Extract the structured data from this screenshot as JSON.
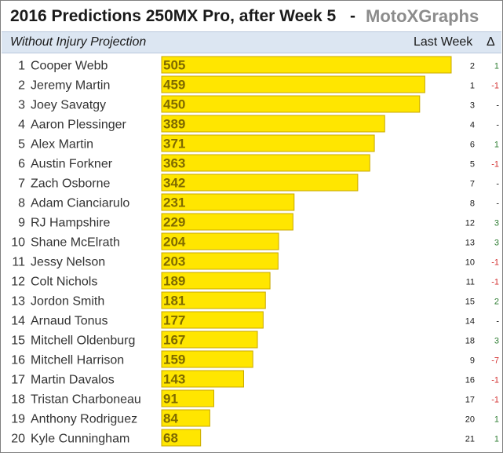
{
  "header": {
    "title": "2016 Predictions 250MX Pro, after Week 5",
    "dash": "-",
    "brand": "MotoXGraphs",
    "subtitle": "Without Injury Projection",
    "last_week_label": "Last Week",
    "delta_label": "Δ"
  },
  "colors": {
    "bar_fill": "#ffe600",
    "bar_stroke": "#c8a800",
    "value_text": "#7f6a00",
    "delta_up": "#2e7d32",
    "delta_down": "#d32f2f",
    "delta_same": "#1a1a1a"
  },
  "chart_data": {
    "type": "bar",
    "orientation": "horizontal",
    "title": "2016 Predictions 250MX Pro, after Week 5",
    "subtitle": "Without Injury Projection",
    "xlim": [
      0,
      505
    ],
    "grid": false,
    "ranks": [
      "1",
      "2",
      "3",
      "4",
      "5",
      "6",
      "7",
      "8",
      "9",
      "10",
      "11",
      "12",
      "13",
      "14",
      "15",
      "16",
      "17",
      "18",
      "19",
      "20"
    ],
    "categories": [
      "Cooper Webb",
      "Jeremy Martin",
      "Joey Savatgy",
      "Aaron Plessinger",
      "Alex Martin",
      "Austin Forkner",
      "Zach Osborne",
      "Adam Cianciarulo",
      "RJ Hampshire",
      "Shane McElrath",
      "Jessy Nelson",
      "Colt Nichols",
      "Jordon Smith",
      "Arnaud Tonus",
      "Mitchell Oldenburg",
      "Mitchell Harrison",
      "Martin Davalos",
      "Tristan Charboneau",
      "Anthony Rodriguez",
      "Kyle Cunningham"
    ],
    "values": [
      505,
      459,
      450,
      389,
      371,
      363,
      342,
      231,
      229,
      204,
      203,
      189,
      181,
      177,
      167,
      159,
      143,
      91,
      84,
      68
    ],
    "last_week": [
      "2",
      "1",
      "3",
      "4",
      "6",
      "5",
      "7",
      "8",
      "12",
      "13",
      "10",
      "11",
      "15",
      "14",
      "18",
      "9",
      "16",
      "17",
      "20",
      "21"
    ],
    "delta": [
      "1",
      "-1",
      "-",
      "-",
      "1",
      "-1",
      "-",
      "-",
      "3",
      "3",
      "-1",
      "-1",
      "2",
      "-",
      "3",
      "-7",
      "-1",
      "-1",
      "1",
      "1"
    ]
  }
}
